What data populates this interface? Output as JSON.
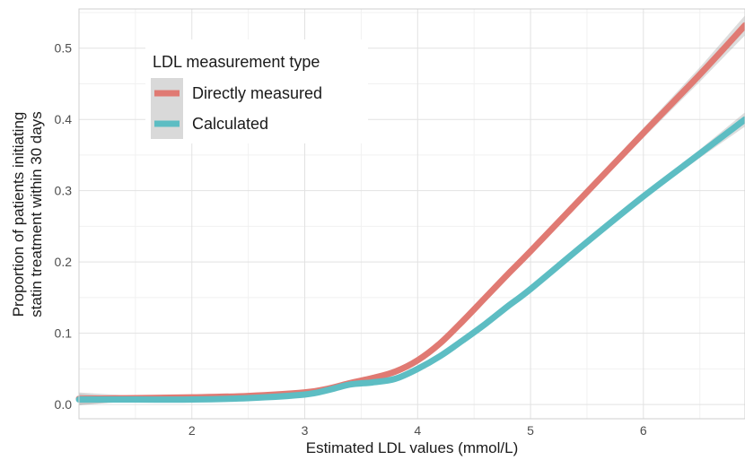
{
  "chart_data": {
    "type": "line",
    "xlabel": "Estimated LDL values (mmol/L)",
    "ylabel_line1": "Proportion of patients initiating",
    "ylabel_line2": "statin treatment within 30 days",
    "xlim": [
      1.0,
      6.9
    ],
    "ylim": [
      -0.02,
      0.555
    ],
    "x_ticks": [
      2,
      3,
      4,
      5,
      6
    ],
    "x_tick_labels": [
      "2",
      "3",
      "4",
      "5",
      "6"
    ],
    "y_ticks": [
      0.0,
      0.1,
      0.2,
      0.3,
      0.4,
      0.5
    ],
    "y_tick_labels": [
      "0.0",
      "0.1",
      "0.2",
      "0.3",
      "0.4",
      "0.5"
    ],
    "grid": true,
    "legend": {
      "title": "LDL measurement type",
      "placement": "top-left",
      "entries": [
        "Directly measured",
        "Calculated"
      ]
    },
    "series": [
      {
        "name": "Directly measured",
        "color": "#E07A73",
        "x": [
          1.0,
          1.5,
          2.0,
          2.5,
          3.0,
          3.2,
          3.4,
          3.6,
          3.8,
          4.0,
          4.2,
          4.4,
          4.6,
          4.8,
          5.0,
          5.5,
          6.0,
          6.5,
          6.9
        ],
        "y": [
          0.008,
          0.009,
          0.01,
          0.012,
          0.017,
          0.022,
          0.03,
          0.037,
          0.046,
          0.062,
          0.086,
          0.117,
          0.15,
          0.183,
          0.215,
          0.298,
          0.381,
          0.463,
          0.532
        ],
        "ci_halfwidth": [
          0.009,
          0.003,
          0.002,
          0.002,
          0.002,
          0.002,
          0.002,
          0.002,
          0.002,
          0.003,
          0.003,
          0.003,
          0.003,
          0.003,
          0.004,
          0.005,
          0.007,
          0.01,
          0.014
        ]
      },
      {
        "name": "Calculated",
        "color": "#5DBDC3",
        "x": [
          1.0,
          1.5,
          2.0,
          2.5,
          3.0,
          3.2,
          3.4,
          3.6,
          3.8,
          4.0,
          4.2,
          4.4,
          4.6,
          4.8,
          5.0,
          5.5,
          6.0,
          6.5,
          6.9
        ],
        "y": [
          0.007,
          0.007,
          0.007,
          0.009,
          0.014,
          0.02,
          0.028,
          0.031,
          0.036,
          0.05,
          0.068,
          0.09,
          0.113,
          0.138,
          0.162,
          0.228,
          0.292,
          0.352,
          0.4
        ],
        "ci_halfwidth": [
          0.008,
          0.002,
          0.001,
          0.001,
          0.001,
          0.001,
          0.001,
          0.001,
          0.001,
          0.001,
          0.002,
          0.002,
          0.002,
          0.002,
          0.002,
          0.003,
          0.004,
          0.006,
          0.01
        ]
      }
    ]
  }
}
